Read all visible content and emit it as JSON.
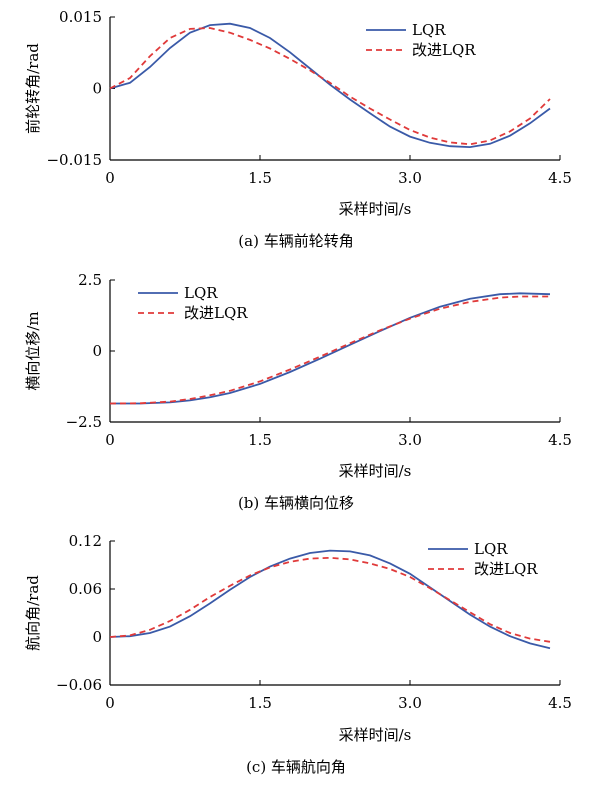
{
  "chart_data": [
    {
      "type": "line",
      "caption": "(a)   车辆前轮转角",
      "xlabel": "采样时间/s",
      "ylabel": "前轮转角/rad",
      "xlim": [
        0,
        4.5
      ],
      "ylim": [
        -0.015,
        0.015
      ],
      "xticks": [
        "0",
        "1.5",
        "3.0",
        "4.5"
      ],
      "yticks": [
        "0.015",
        "0",
        "−0.015"
      ],
      "legend_position": "top-right",
      "series": [
        {
          "name": "LQR",
          "color": "#3a5aa8",
          "style": "solid",
          "x": [
            0,
            0.2,
            0.4,
            0.6,
            0.8,
            1.0,
            1.2,
            1.4,
            1.6,
            1.8,
            2.0,
            2.2,
            2.4,
            2.6,
            2.8,
            3.0,
            3.2,
            3.4,
            3.6,
            3.8,
            4.0,
            4.2,
            4.4
          ],
          "y": [
            0,
            0.0012,
            0.0045,
            0.0085,
            0.0117,
            0.0133,
            0.0136,
            0.0127,
            0.0106,
            0.0076,
            0.0042,
            0.0008,
            -0.0023,
            -0.0052,
            -0.008,
            -0.0101,
            -0.0114,
            -0.0121,
            -0.0123,
            -0.0116,
            -0.0099,
            -0.0073,
            -0.0042
          ]
        },
        {
          "name": "改进LQR",
          "color": "#e03a3a",
          "style": "dashed",
          "x": [
            0,
            0.2,
            0.4,
            0.6,
            0.8,
            1.0,
            1.2,
            1.4,
            1.6,
            1.8,
            2.0,
            2.2,
            2.4,
            2.6,
            2.8,
            3.0,
            3.2,
            3.4,
            3.6,
            3.8,
            4.0,
            4.2,
            4.4
          ],
          "y": [
            0,
            0.0022,
            0.0068,
            0.0106,
            0.0125,
            0.0127,
            0.0117,
            0.0102,
            0.0084,
            0.0062,
            0.0038,
            0.0012,
            -0.0017,
            -0.0042,
            -0.0065,
            -0.0087,
            -0.0103,
            -0.0113,
            -0.0117,
            -0.0109,
            -0.009,
            -0.0063,
            -0.0022
          ]
        }
      ]
    },
    {
      "type": "line",
      "caption": "(b)   车辆横向位移",
      "xlabel": "采样时间/s",
      "ylabel": "横向位移/m",
      "xlim": [
        0,
        4.5
      ],
      "ylim": [
        -2.5,
        2.5
      ],
      "xticks": [
        "0",
        "1.5",
        "3.0",
        "4.5"
      ],
      "yticks": [
        "2.5",
        "0",
        "−2.5"
      ],
      "legend_position": "top-left",
      "series": [
        {
          "name": "LQR",
          "color": "#3a5aa8",
          "style": "solid",
          "x": [
            0,
            0.3,
            0.6,
            0.8,
            1.0,
            1.2,
            1.5,
            1.8,
            2.1,
            2.4,
            2.7,
            3.0,
            3.3,
            3.6,
            3.9,
            4.1,
            4.4
          ],
          "y": [
            -1.85,
            -1.85,
            -1.81,
            -1.74,
            -1.63,
            -1.48,
            -1.16,
            -0.74,
            -0.27,
            0.22,
            0.7,
            1.17,
            1.56,
            1.84,
            2.0,
            2.03,
            2.0
          ]
        },
        {
          "name": "改进LQR",
          "color": "#e03a3a",
          "style": "dashed",
          "x": [
            0,
            0.3,
            0.6,
            0.8,
            1.0,
            1.2,
            1.5,
            1.8,
            2.1,
            2.4,
            2.7,
            3.0,
            3.3,
            3.6,
            3.9,
            4.1,
            4.4
          ],
          "y": [
            -1.85,
            -1.84,
            -1.78,
            -1.69,
            -1.56,
            -1.4,
            -1.07,
            -0.65,
            -0.2,
            0.27,
            0.73,
            1.14,
            1.49,
            1.73,
            1.88,
            1.92,
            1.92
          ]
        }
      ]
    },
    {
      "type": "line",
      "caption": "(c)   车辆航向角",
      "xlabel": "采样时间/s",
      "ylabel": "航向角/rad",
      "xlim": [
        0,
        4.5
      ],
      "ylim": [
        -0.06,
        0.12
      ],
      "xticks": [
        "0",
        "1.5",
        "3.0",
        "4.5"
      ],
      "yticks": [
        "0.12",
        "0.06",
        "0",
        "−0.06"
      ],
      "legend_position": "top-right",
      "series": [
        {
          "name": "LQR",
          "color": "#3a5aa8",
          "style": "solid",
          "x": [
            0,
            0.2,
            0.4,
            0.6,
            0.8,
            1.0,
            1.2,
            1.4,
            1.6,
            1.8,
            2.0,
            2.2,
            2.4,
            2.6,
            2.8,
            3.0,
            3.2,
            3.4,
            3.6,
            3.8,
            4.0,
            4.2,
            4.4
          ],
          "y": [
            0,
            0.001,
            0.005,
            0.013,
            0.026,
            0.042,
            0.059,
            0.075,
            0.088,
            0.098,
            0.105,
            0.108,
            0.107,
            0.102,
            0.092,
            0.079,
            0.062,
            0.045,
            0.028,
            0.013,
            0.001,
            -0.008,
            -0.014
          ]
        },
        {
          "name": "改进LQR",
          "color": "#e03a3a",
          "style": "dashed",
          "x": [
            0,
            0.2,
            0.4,
            0.6,
            0.8,
            1.0,
            1.2,
            1.4,
            1.6,
            1.8,
            2.0,
            2.2,
            2.4,
            2.6,
            2.8,
            3.0,
            3.2,
            3.4,
            3.6,
            3.8,
            4.0,
            4.2,
            4.4
          ],
          "y": [
            0,
            0.002,
            0.009,
            0.02,
            0.034,
            0.05,
            0.064,
            0.077,
            0.087,
            0.094,
            0.098,
            0.099,
            0.097,
            0.092,
            0.085,
            0.075,
            0.061,
            0.046,
            0.031,
            0.016,
            0.005,
            -0.002,
            -0.006
          ]
        }
      ]
    }
  ]
}
